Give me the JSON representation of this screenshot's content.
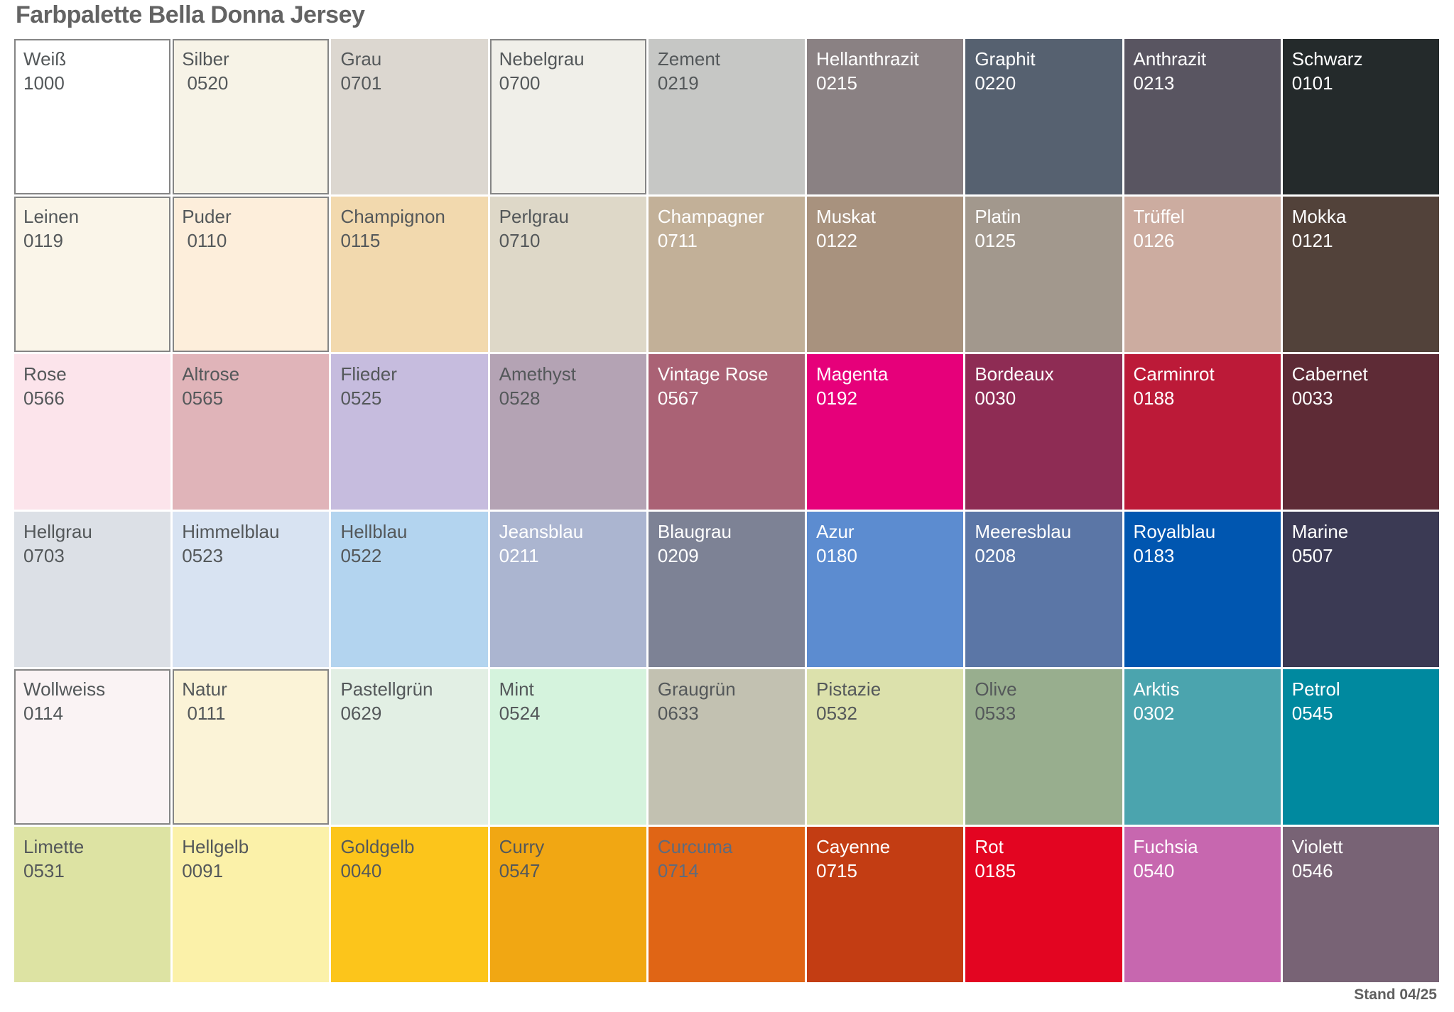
{
  "header": {
    "title": "Farbpalette Bella Donna Jersey"
  },
  "footer": {
    "stand_label": "Stand 04/25"
  },
  "palette": {
    "columns": 9,
    "rows": 6,
    "text_dark": "#54585a",
    "text_light": "#ffffff",
    "border_color": "#858585",
    "cells": [
      {
        "name": "Weiß",
        "code": "1000",
        "bg": "#ffffff",
        "text": "dark",
        "border": true
      },
      {
        "name": "Silber",
        "code": " 0520",
        "bg": "#f7f3e7",
        "text": "dark",
        "border": true
      },
      {
        "name": "Grau",
        "code": "0701",
        "bg": "#dcd7d0",
        "text": "dark",
        "border": false
      },
      {
        "name": "Nebelgrau",
        "code": "0700",
        "bg": "#f0efe9",
        "text": "dark",
        "border": true
      },
      {
        "name": "Zement",
        "code": "0219",
        "bg": "#c6c7c5",
        "text": "dark",
        "border": false
      },
      {
        "name": "Hellanthrazit",
        "code": "0215",
        "bg": "#8a8183",
        "text": "light",
        "border": false
      },
      {
        "name": "Graphit",
        "code": "0220",
        "bg": "#566170",
        "text": "light",
        "border": false
      },
      {
        "name": "Anthrazit",
        "code": "0213",
        "bg": "#595561",
        "text": "light",
        "border": false
      },
      {
        "name": "Schwarz",
        "code": "0101",
        "bg": "#242a2b",
        "text": "light",
        "border": false
      },
      {
        "name": "Leinen",
        "code": "0119",
        "bg": "#faf5e9",
        "text": "dark",
        "border": true
      },
      {
        "name": "Puder",
        "code": " 0110",
        "bg": "#fdeedb",
        "text": "dark",
        "border": true
      },
      {
        "name": "Champignon",
        "code": "0115",
        "bg": "#f2d9ae",
        "text": "dark",
        "border": false
      },
      {
        "name": "Perlgrau",
        "code": "0710",
        "bg": "#ded8c8",
        "text": "dark",
        "border": false
      },
      {
        "name": "Champagner",
        "code": "0711",
        "bg": "#c2b098",
        "text": "light",
        "border": false
      },
      {
        "name": "Muskat",
        "code": "0122",
        "bg": "#a8927e",
        "text": "light",
        "border": false
      },
      {
        "name": "Platin",
        "code": "0125",
        "bg": "#a2988d",
        "text": "light",
        "border": false
      },
      {
        "name": "Trüffel",
        "code": "0126",
        "bg": "#ccaca0",
        "text": "light",
        "border": false
      },
      {
        "name": "Mokka",
        "code": "0121",
        "bg": "#52423a",
        "text": "light",
        "border": false
      },
      {
        "name": "Rose",
        "code": "0566",
        "bg": "#fce4eb",
        "text": "dark",
        "border": false
      },
      {
        "name": "Altrose",
        "code": "0565",
        "bg": "#e0b4b9",
        "text": "dark",
        "border": false
      },
      {
        "name": "Flieder",
        "code": "0525",
        "bg": "#c6bcde",
        "text": "dark",
        "border": false
      },
      {
        "name": "Amethyst",
        "code": "0528",
        "bg": "#b4a3b4",
        "text": "dark",
        "border": false
      },
      {
        "name": "Vintage Rose",
        "code": "0567",
        "bg": "#aa6275",
        "text": "light",
        "border": false
      },
      {
        "name": "Magenta",
        "code": "0192",
        "bg": "#e6007a",
        "text": "light",
        "border": false
      },
      {
        "name": "Bordeaux",
        "code": "0030",
        "bg": "#8e2c54",
        "text": "light",
        "border": false
      },
      {
        "name": "Carminrot",
        "code": "0188",
        "bg": "#bc1a38",
        "text": "light",
        "border": false
      },
      {
        "name": "Cabernet",
        "code": "0033",
        "bg": "#5e2b36",
        "text": "light",
        "border": false
      },
      {
        "name": "Hellgrau",
        "code": "0703",
        "bg": "#dce0e6",
        "text": "dark",
        "border": false
      },
      {
        "name": "Himmelblau",
        "code": "0523",
        "bg": "#d8e3f2",
        "text": "dark",
        "border": false
      },
      {
        "name": "Hellblau",
        "code": "0522",
        "bg": "#b3d4ef",
        "text": "dark",
        "border": false
      },
      {
        "name": "Jeansblau",
        "code": "0211",
        "bg": "#abb5d0",
        "text": "light",
        "border": false
      },
      {
        "name": "Blaugrau",
        "code": "0209",
        "bg": "#7d8295",
        "text": "light",
        "border": false
      },
      {
        "name": "Azur",
        "code": "0180",
        "bg": "#5c8cd0",
        "text": "light",
        "border": false
      },
      {
        "name": "Meeresblau",
        "code": "0208",
        "bg": "#5b76a6",
        "text": "light",
        "border": false
      },
      {
        "name": "Royalblau",
        "code": "0183",
        "bg": "#0056b0",
        "text": "light",
        "border": false
      },
      {
        "name": "Marine",
        "code": "0507",
        "bg": "#3b3a54",
        "text": "light",
        "border": false
      },
      {
        "name": "Wollweiss",
        "code": "0114",
        "bg": "#faf3f4",
        "text": "dark",
        "border": true
      },
      {
        "name": "Natur",
        "code": " 0111",
        "bg": "#fbf3d7",
        "text": "dark",
        "border": true
      },
      {
        "name": "Pastellgrün",
        "code": "0629",
        "bg": "#e2efe4",
        "text": "dark",
        "border": false
      },
      {
        "name": "Mint",
        "code": "0524",
        "bg": "#d5f3dd",
        "text": "dark",
        "border": false
      },
      {
        "name": "Graugrün",
        "code": "0633",
        "bg": "#c2c1b1",
        "text": "dark",
        "border": false
      },
      {
        "name": "Pistazie",
        "code": "0532",
        "bg": "#dce1ac",
        "text": "dark",
        "border": false
      },
      {
        "name": "Olive",
        "code": "0533",
        "bg": "#98ae8e",
        "text": "dark",
        "border": false
      },
      {
        "name": "Arktis",
        "code": "0302",
        "bg": "#4ba4ae",
        "text": "light",
        "border": false
      },
      {
        "name": "Petrol",
        "code": "0545",
        "bg": "#00899f",
        "text": "light",
        "border": false
      },
      {
        "name": "Limette",
        "code": "0531",
        "bg": "#dde3a3",
        "text": "dark",
        "border": false
      },
      {
        "name": "Hellgelb",
        "code": "0091",
        "bg": "#fbf1a9",
        "text": "dark",
        "border": false
      },
      {
        "name": "Goldgelb",
        "code": "0040",
        "bg": "#fcc51b",
        "text": "dark",
        "border": false
      },
      {
        "name": "Curry",
        "code": "0547",
        "bg": "#f1a713",
        "text": "dark",
        "border": false
      },
      {
        "name": "Curcuma",
        "code": "0714",
        "bg": "#e06515",
        "text": "#5e6b7d",
        "border": false
      },
      {
        "name": "Cayenne",
        "code": "0715",
        "bg": "#c33d13",
        "text": "light",
        "border": false
      },
      {
        "name": "Rot",
        "code": "0185",
        "bg": "#e30521",
        "text": "light",
        "border": false
      },
      {
        "name": "Fuchsia",
        "code": "0540",
        "bg": "#c767af",
        "text": "light",
        "border": false
      },
      {
        "name": "Violett",
        "code": "0546",
        "bg": "#786375",
        "text": "light",
        "border": false
      }
    ]
  }
}
